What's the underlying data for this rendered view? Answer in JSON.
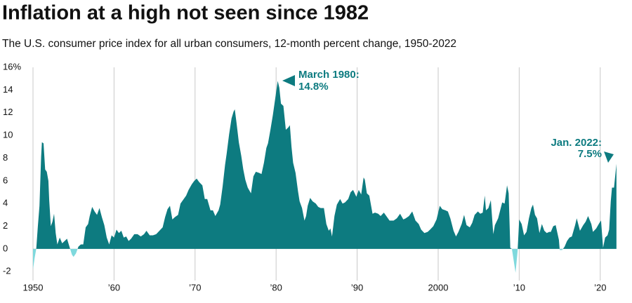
{
  "chart_data": {
    "type": "area",
    "title": "Inflation at a high not seen since 1982",
    "subtitle": "The U.S. consumer price index for all urban consumers, 12-month percent change, 1950-2022",
    "color": "#0d7b80",
    "negative_color": "#7fd9dd",
    "grid": true,
    "annotations": [
      {
        "lines": [
          "March 1980:",
          "14.8%"
        ]
      },
      {
        "lines": [
          "Jan. 2022:",
          "7.5%"
        ]
      }
    ],
    "xlim": [
      1950,
      2022.1
    ],
    "xticks": [
      1950,
      {
        "value": 1960,
        "label": "’60"
      },
      {
        "value": 1970,
        "label": "’70"
      },
      {
        "value": 1980,
        "label": "’80"
      },
      {
        "value": 1990,
        "label": "’90"
      },
      2000,
      {
        "value": 2010,
        "label": "’10"
      },
      {
        "value": 2020,
        "label": "’20"
      }
    ],
    "ylim": [
      -2.6,
      16
    ],
    "yticks": [
      {
        "value": 16,
        "label": "16%"
      },
      14,
      12,
      10,
      8,
      6,
      4,
      2,
      0,
      -2
    ],
    "x": [
      1950.0,
      1950.2,
      1950.4,
      1950.6,
      1950.8,
      1951.0,
      1951.1,
      1951.3,
      1951.5,
      1951.7,
      1951.9,
      1952.0,
      1952.2,
      1952.4,
      1952.6,
      1952.8,
      1953.0,
      1953.3,
      1953.6,
      1953.9,
      1954.2,
      1954.5,
      1954.8,
      1955.0,
      1955.3,
      1955.6,
      1955.9,
      1956.2,
      1956.5,
      1956.8,
      1957.0,
      1957.3,
      1957.6,
      1957.9,
      1958.2,
      1958.5,
      1958.8,
      1959.1,
      1959.4,
      1959.7,
      1960.0,
      1960.3,
      1960.6,
      1960.9,
      1961.2,
      1961.5,
      1961.8,
      1962.1,
      1962.5,
      1962.9,
      1963.3,
      1963.7,
      1964.0,
      1964.4,
      1964.8,
      1965.2,
      1965.6,
      1966.0,
      1966.3,
      1966.6,
      1966.9,
      1967.2,
      1967.5,
      1967.9,
      1968.2,
      1968.6,
      1968.9,
      1969.2,
      1969.6,
      1969.9,
      1970.2,
      1970.5,
      1970.9,
      1971.2,
      1971.5,
      1971.9,
      1972.2,
      1972.5,
      1972.9,
      1973.1,
      1973.4,
      1973.7,
      1973.9,
      1974.2,
      1974.5,
      1974.75,
      1974.9,
      1975.1,
      1975.4,
      1975.7,
      1975.95,
      1976.2,
      1976.5,
      1976.9,
      1977.2,
      1977.5,
      1977.9,
      1978.2,
      1978.5,
      1978.8,
      1979.0,
      1979.3,
      1979.6,
      1979.9,
      1980.2,
      1980.4,
      1980.6,
      1980.9,
      1981.2,
      1981.5,
      1981.7,
      1981.9,
      1982.1,
      1982.4,
      1982.7,
      1982.9,
      1983.2,
      1983.5,
      1983.7,
      1983.9,
      1984.2,
      1984.5,
      1984.9,
      1985.2,
      1985.5,
      1985.9,
      1986.2,
      1986.5,
      1986.7,
      1986.9,
      1987.2,
      1987.5,
      1987.9,
      1988.2,
      1988.5,
      1988.9,
      1989.2,
      1989.5,
      1989.9,
      1990.2,
      1990.5,
      1990.8,
      1990.95,
      1991.2,
      1991.5,
      1991.9,
      1992.2,
      1992.6,
      1992.9,
      1993.3,
      1993.7,
      1994.0,
      1994.5,
      1994.9,
      1995.3,
      1995.7,
      1996.0,
      1996.4,
      1996.8,
      1997.2,
      1997.6,
      1997.9,
      1998.3,
      1998.7,
      1999.0,
      1999.4,
      1999.8,
      2000.2,
      2000.5,
      2000.9,
      2001.2,
      2001.5,
      2001.9,
      2002.2,
      2002.5,
      2002.9,
      2003.2,
      2003.5,
      2003.9,
      2004.2,
      2004.5,
      2004.9,
      2005.2,
      2005.5,
      2005.75,
      2005.9,
      2006.2,
      2006.5,
      2006.8,
      2007.0,
      2007.4,
      2007.9,
      2008.2,
      2008.5,
      2008.7,
      2008.9,
      2009.1,
      2009.4,
      2009.55,
      2009.8,
      2010.0,
      2010.3,
      2010.6,
      2010.9,
      2011.2,
      2011.5,
      2011.7,
      2011.95,
      2012.2,
      2012.5,
      2012.8,
      2013.1,
      2013.4,
      2013.7,
      2013.9,
      2014.2,
      2014.5,
      2014.9,
      2015.0,
      2015.3,
      2015.6,
      2015.9,
      2016.2,
      2016.5,
      2016.9,
      2017.1,
      2017.5,
      2017.9,
      2018.2,
      2018.5,
      2018.9,
      2019.1,
      2019.5,
      2019.9,
      2020.1,
      2020.35,
      2020.6,
      2020.9,
      2021.1,
      2021.3,
      2021.45,
      2021.7,
      2021.9,
      2022.0
    ],
    "values": [
      -1.8,
      -0.8,
      0,
      2.0,
      3.8,
      8.1,
      9.4,
      9.3,
      7.0,
      6.8,
      6.0,
      4.3,
      2.0,
      2.4,
      3.1,
      1.4,
      0.4,
      1.0,
      0.5,
      0.7,
      0.9,
      0.2,
      -0.5,
      -0.7,
      -0.4,
      0.2,
      0.4,
      0.4,
      1.9,
      2.2,
      2.9,
      3.7,
      3.3,
      3.0,
      3.6,
      2.8,
      2.1,
      1.0,
      0.4,
      1.2,
      1.0,
      1.7,
      1.4,
      1.6,
      1.0,
      1.1,
      0.7,
      0.9,
      1.3,
      1.3,
      1.1,
      1.3,
      1.6,
      1.2,
      1.2,
      1.3,
      1.6,
      1.9,
      2.8,
      3.5,
      3.8,
      2.6,
      2.8,
      3.0,
      4.0,
      4.4,
      4.7,
      5.2,
      5.7,
      6.0,
      6.2,
      5.9,
      5.6,
      4.4,
      4.4,
      3.4,
      3.4,
      2.9,
      3.4,
      3.9,
      5.5,
      7.4,
      8.4,
      10.1,
      11.5,
      12.1,
      12.3,
      11.2,
      9.4,
      8.2,
      7.0,
      6.1,
      5.4,
      4.9,
      6.4,
      6.8,
      6.7,
      6.6,
      7.6,
      8.9,
      9.3,
      10.5,
      11.8,
      13.3,
      14.8,
      14.2,
      12.8,
      12.6,
      10.5,
      10.7,
      10.9,
      9.0,
      7.6,
      6.7,
      5.1,
      4.2,
      3.6,
      2.5,
      2.9,
      3.8,
      4.5,
      4.2,
      4.0,
      3.7,
      3.6,
      3.6,
      2.2,
      1.6,
      1.8,
      1.1,
      2.9,
      3.9,
      4.4,
      4.0,
      4.1,
      4.4,
      5.0,
      5.2,
      4.6,
      5.2,
      4.8,
      6.3,
      6.1,
      4.9,
      4.7,
      3.1,
      3.2,
      3.1,
      2.9,
      3.2,
      2.8,
      2.5,
      2.5,
      2.7,
      3.1,
      2.6,
      2.7,
      2.9,
      3.3,
      2.5,
      2.2,
      1.7,
      1.4,
      1.5,
      1.7,
      2.0,
      2.6,
      3.8,
      3.5,
      3.4,
      3.3,
      2.7,
      1.6,
      1.1,
      1.5,
      2.2,
      3.0,
      2.1,
      1.9,
      2.3,
      3.0,
      3.3,
      3.1,
      3.2,
      4.7,
      3.4,
      3.6,
      4.3,
      1.3,
      2.1,
      2.7,
      4.1,
      4.0,
      5.6,
      4.9,
      0.1,
      0.0,
      -1.4,
      -2.1,
      -0.2,
      2.6,
      2.2,
      1.2,
      1.5,
      2.7,
      3.6,
      3.9,
      3.0,
      2.7,
      1.4,
      2.2,
      1.6,
      1.4,
      1.5,
      1.5,
      2.0,
      2.1,
      0.8,
      -0.1,
      -0.1,
      0.2,
      0.7,
      1.0,
      1.1,
      2.1,
      2.7,
      1.6,
      2.1,
      2.4,
      2.9,
      2.2,
      1.5,
      1.8,
      2.3,
      2.5,
      0.1,
      1.0,
      1.2,
      1.7,
      4.2,
      5.4,
      5.4,
      6.8,
      7.5
    ]
  }
}
